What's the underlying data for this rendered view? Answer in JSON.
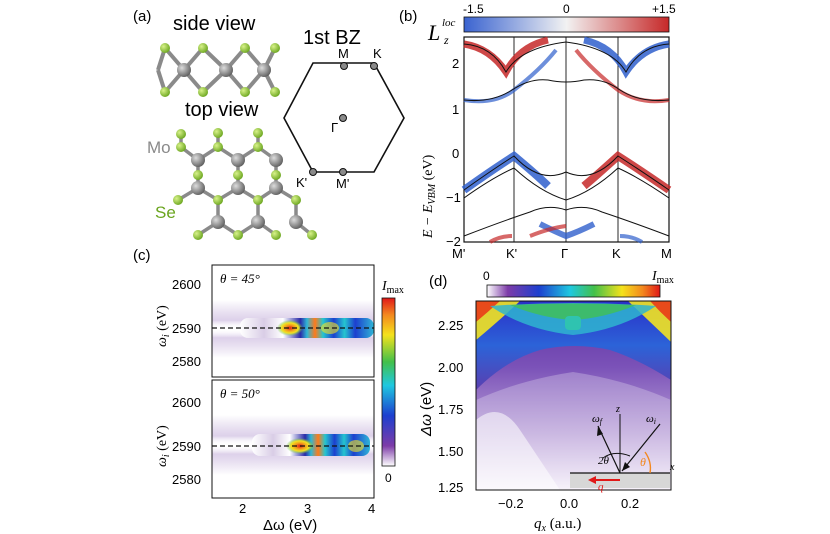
{
  "panels": {
    "a": {
      "label": "(a)",
      "side_view": "side view",
      "top_view": "top view",
      "bz_title": "1st BZ",
      "mo_label": "Mo",
      "se_label": "Se",
      "bz_points": {
        "M": "M",
        "K": "K",
        "Gamma": "Γ",
        "Kp": "K'",
        "Mp": "M'"
      },
      "colors": {
        "mo": "#8a8a8a",
        "se": "#8cc63f"
      }
    },
    "b": {
      "label": "(b)",
      "colorbar_min": "-1.5",
      "colorbar_mid": "0",
      "colorbar_max": "+1.5",
      "colorbar_symbol": "L",
      "colorbar_sup": "loc",
      "colorbar_sub": "z",
      "ylabel_main": "E − E",
      "ylabel_sub": "VBM",
      "ylabel_unit": " (eV)",
      "colors": {
        "negative": "#2f5fcc",
        "positive": "#c62828"
      }
    },
    "c": {
      "label": "(c)",
      "top_theta": "θ = 45°",
      "bottom_theta": "θ = 50°",
      "ylabel_sym": "ω",
      "ylabel_sub": "i",
      "ylabel_unit": " (eV)",
      "xlabel_sym": "Δω",
      "xlabel_unit": " (eV)",
      "colorbar_max": "I",
      "colorbar_max_sub": "max",
      "colorbar_min": "0"
    },
    "d": {
      "label": "(d)",
      "colorbar_min": "0",
      "colorbar_max": "I",
      "colorbar_max_sub": "max",
      "ylabel_sym": "Δω",
      "ylabel_unit": " (eV)",
      "xlabel_sym": "q",
      "xlabel_sub": "x",
      "xlabel_unit": " (a.u.)",
      "inset": {
        "wf": "ω",
        "wf_sub": "f",
        "wi": "ω",
        "wi_sub": "i",
        "z": "z",
        "x": "x",
        "two_theta": "2θ",
        "theta": "θ",
        "q": "q"
      }
    }
  },
  "chart_data": [
    {
      "type": "line",
      "title": "",
      "xlabel": "",
      "ylabel": "E − E_VBM (eV)",
      "categories": [
        "M'",
        "K'",
        "Γ",
        "K",
        "M"
      ],
      "ylim": [
        -2,
        2.5
      ],
      "yticks": [
        -2,
        -1,
        0,
        1,
        2
      ],
      "series": [
        {
          "x": [
            0,
            0.12,
            0.25,
            0.375,
            0.5,
            0.625,
            0.75,
            0.88,
            1.0
          ],
          "values": [
            2.3,
            2.15,
            1.95,
            2.2,
            2.3,
            2.2,
            1.95,
            2.15,
            2.3
          ]
        },
        {
          "x": [
            0,
            0.12,
            0.25,
            0.375,
            0.5,
            0.625,
            0.75,
            0.88,
            1.0
          ],
          "values": [
            1.8,
            1.5,
            1.35,
            1.75,
            1.9,
            1.75,
            1.35,
            1.5,
            1.8
          ]
        },
        {
          "x": [
            0,
            0.12,
            0.25,
            0.375,
            0.5,
            0.625,
            0.75,
            0.88,
            1.0
          ],
          "values": [
            -0.8,
            -0.3,
            -0.05,
            -0.55,
            -0.35,
            -0.55,
            -0.05,
            -0.3,
            -0.8
          ]
        },
        {
          "x": [
            0,
            0.12,
            0.25,
            0.375,
            0.5,
            0.625,
            0.75,
            0.88,
            1.0
          ],
          "values": [
            -1.0,
            -0.6,
            -0.25,
            -0.9,
            -1.15,
            -0.9,
            -0.25,
            -0.6,
            -1.0
          ]
        },
        {
          "x": [
            0,
            0.12,
            0.25,
            0.375,
            0.5,
            0.625,
            0.75,
            0.88,
            1.0
          ],
          "values": [
            -1.9,
            -1.5,
            -1.4,
            -1.2,
            -1.5,
            -1.2,
            -1.4,
            -1.5,
            -1.9
          ]
        }
      ]
    },
    {
      "type": "heatmap",
      "title": "θ = 45°",
      "xlabel": "Δω (eV)",
      "ylabel": "ω_i (eV)",
      "xlim": [
        1.5,
        4
      ],
      "ylim": [
        2575,
        2607
      ],
      "xticks": [
        2,
        3,
        4
      ],
      "yticks": [
        2580,
        2590,
        2600
      ],
      "resonance_line": 2588,
      "peak": {
        "x": 2.75,
        "y": 2588
      }
    },
    {
      "type": "heatmap",
      "title": "θ = 50°",
      "xlabel": "Δω (eV)",
      "ylabel": "ω_i (eV)",
      "xlim": [
        1.5,
        4
      ],
      "ylim": [
        2575,
        2607
      ],
      "xticks": [
        2,
        3,
        4
      ],
      "yticks": [
        2580,
        2590,
        2600
      ],
      "resonance_line": 2588,
      "peak": {
        "x": 2.9,
        "y": 2588
      }
    },
    {
      "type": "heatmap",
      "title": "",
      "xlabel": "q_x (a.u.)",
      "ylabel": "Δω (eV)",
      "xlim": [
        -0.3,
        0.3
      ],
      "ylim": [
        1.2,
        2.4
      ],
      "xticks": [
        -0.2,
        0.0,
        0.2
      ],
      "yticks": [
        1.25,
        1.5,
        1.75,
        2.0,
        2.25
      ]
    }
  ]
}
